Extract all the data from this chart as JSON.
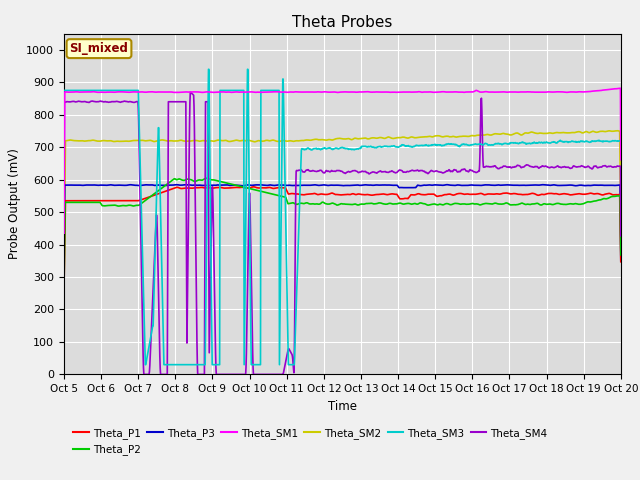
{
  "title": "Theta Probes",
  "xlabel": "Time",
  "ylabel": "Probe Output (mV)",
  "ylim": [
    0,
    1050
  ],
  "xlim": [
    0,
    15
  ],
  "bg_color": "#dcdcdc",
  "fig_color": "#f0f0f0",
  "annotation_text": "SI_mixed",
  "annotation_color": "#880000",
  "annotation_bg": "#ffffcc",
  "annotation_border": "#aa8800",
  "xtick_labels": [
    "Oct 5",
    "Oct 6",
    "Oct 7",
    "Oct 8",
    "Oct 9",
    "Oct 10",
    "Oct 11",
    "Oct 12",
    "Oct 13",
    "Oct 14",
    "Oct 15",
    "Oct 16",
    "Oct 17",
    "Oct 18",
    "Oct 19",
    "Oct 20"
  ],
  "series": {
    "Theta_P1": {
      "color": "#ff0000",
      "lw": 1.2
    },
    "Theta_P2": {
      "color": "#00cc00",
      "lw": 1.2
    },
    "Theta_P3": {
      "color": "#0000cc",
      "lw": 1.2
    },
    "Theta_SM1": {
      "color": "#ff00ff",
      "lw": 1.2
    },
    "Theta_SM2": {
      "color": "#cccc00",
      "lw": 1.2
    },
    "Theta_SM3": {
      "color": "#00cccc",
      "lw": 1.2
    },
    "Theta_SM4": {
      "color": "#9900cc",
      "lw": 1.2
    }
  },
  "grid_color": "#ffffff",
  "yticks": [
    0,
    100,
    200,
    300,
    400,
    500,
    600,
    700,
    800,
    900,
    1000
  ]
}
